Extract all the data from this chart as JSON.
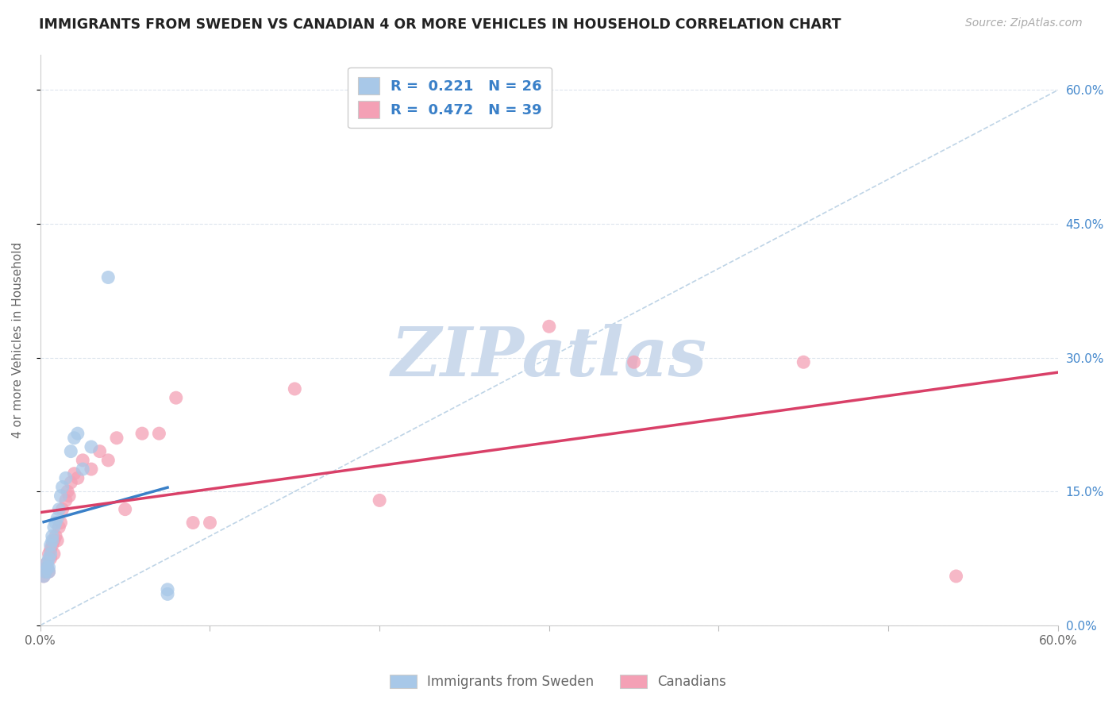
{
  "title": "IMMIGRANTS FROM SWEDEN VS CANADIAN 4 OR MORE VEHICLES IN HOUSEHOLD CORRELATION CHART",
  "source": "Source: ZipAtlas.com",
  "ylabel": "4 or more Vehicles in Household",
  "xlim": [
    0.0,
    0.6
  ],
  "ylim": [
    0.0,
    0.64
  ],
  "xtick_positions": [
    0.0,
    0.1,
    0.2,
    0.3,
    0.4,
    0.5,
    0.6
  ],
  "xticklabels": [
    "0.0%",
    "",
    "",
    "",
    "",
    "",
    "60.0%"
  ],
  "ytick_positions": [
    0.0,
    0.15,
    0.3,
    0.45,
    0.6
  ],
  "ytick_labels_right": [
    "0.0%",
    "15.0%",
    "30.0%",
    "45.0%",
    "60.0%"
  ],
  "r_blue": "0.221",
  "n_blue": "26",
  "r_pink": "0.472",
  "n_pink": "39",
  "blue_scatter_color": "#a8c8e8",
  "pink_scatter_color": "#f4a0b5",
  "blue_line_color": "#3a80c8",
  "pink_line_color": "#d94068",
  "ref_line_color": "#b8d0e4",
  "watermark_text": "ZIPatlas",
  "watermark_color": "#ccdaec",
  "legend_text_color": "#3a80c8",
  "axis_label_color": "#666666",
  "right_axis_color": "#4488cc",
  "grid_color": "#dde5ed",
  "title_color": "#222222",
  "source_color": "#aaaaaa",
  "blue_x": [
    0.002,
    0.003,
    0.004,
    0.004,
    0.005,
    0.005,
    0.005,
    0.006,
    0.006,
    0.007,
    0.007,
    0.008,
    0.009,
    0.01,
    0.011,
    0.012,
    0.013,
    0.015,
    0.018,
    0.02,
    0.022,
    0.025,
    0.03,
    0.04,
    0.075,
    0.075
  ],
  "blue_y": [
    0.055,
    0.06,
    0.065,
    0.07,
    0.06,
    0.065,
    0.075,
    0.08,
    0.09,
    0.095,
    0.1,
    0.11,
    0.115,
    0.12,
    0.13,
    0.145,
    0.155,
    0.165,
    0.195,
    0.21,
    0.215,
    0.175,
    0.2,
    0.39,
    0.035,
    0.04
  ],
  "pink_x": [
    0.002,
    0.003,
    0.004,
    0.004,
    0.005,
    0.005,
    0.006,
    0.006,
    0.007,
    0.008,
    0.008,
    0.009,
    0.01,
    0.011,
    0.012,
    0.013,
    0.015,
    0.016,
    0.017,
    0.018,
    0.02,
    0.022,
    0.025,
    0.03,
    0.035,
    0.04,
    0.045,
    0.05,
    0.06,
    0.07,
    0.08,
    0.09,
    0.1,
    0.15,
    0.2,
    0.3,
    0.35,
    0.45,
    0.54
  ],
  "pink_y": [
    0.055,
    0.06,
    0.065,
    0.07,
    0.06,
    0.08,
    0.075,
    0.085,
    0.09,
    0.08,
    0.095,
    0.1,
    0.095,
    0.11,
    0.115,
    0.13,
    0.14,
    0.15,
    0.145,
    0.16,
    0.17,
    0.165,
    0.185,
    0.175,
    0.195,
    0.185,
    0.21,
    0.13,
    0.215,
    0.215,
    0.255,
    0.115,
    0.115,
    0.265,
    0.14,
    0.335,
    0.295,
    0.295,
    0.055
  ]
}
